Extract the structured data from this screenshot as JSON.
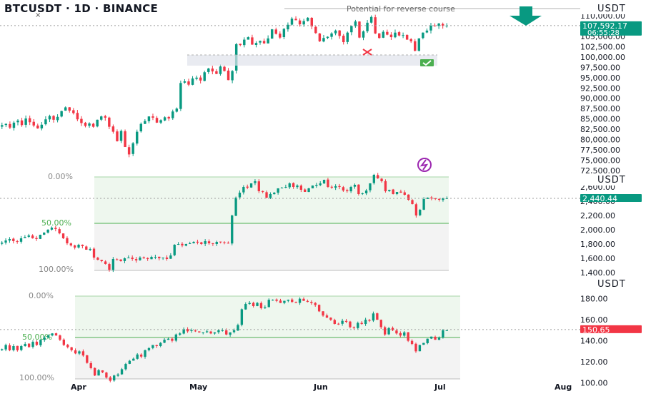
{
  "header": {
    "title": "BTCUSDT · 1D · BINANCE",
    "close_mark": "×"
  },
  "colors": {
    "up": "#089981",
    "down": "#f23645",
    "fib_fill": "#eef7ee",
    "fib_line": "#4caf50",
    "lower_fill": "#f3f3f3",
    "last_price_green": "#089981",
    "last_price_red": "#f23645",
    "arrow": "#089981"
  },
  "x_axis": {
    "months": [
      "Apr",
      "May",
      "Jun",
      "Jul",
      "Aug"
    ]
  },
  "chart_data": [
    {
      "type": "candlestick",
      "title": "BTCUSDT · 1D · BINANCE",
      "unit": "USDT",
      "ylim": [
        72500,
        110000
      ],
      "y_ticks": [
        "110,000.00",
        "107,500.00",
        "105,000.00",
        "102,500.00",
        "100,000.00",
        "97,500.00",
        "95,000.00",
        "92,500.00",
        "90,000.00",
        "87,500.00",
        "85,000.00",
        "82,500.00",
        "80,000.00",
        "77,500.00",
        "75,000.00",
        "72,500.00"
      ],
      "last_price": "107,592.17",
      "countdown": "06:55:28",
      "annotations": [
        "Potential for reverse course"
      ],
      "icons": [
        "arrow-down-icon",
        "x-mark-icon",
        "checkmark-icon",
        "lightning-badge-icon"
      ],
      "closes": [
        83500,
        83800,
        82900,
        84100,
        84600,
        83500,
        85100,
        84200,
        83400,
        82700,
        83600,
        84900,
        85700,
        84800,
        85500,
        86900,
        87800,
        87000,
        86400,
        84900,
        84000,
        83300,
        83900,
        83100,
        84800,
        85600,
        85300,
        83100,
        81900,
        79600,
        82100,
        78200,
        76400,
        79100,
        81900,
        83800,
        84500,
        85600,
        85300,
        84100,
        84700,
        85400,
        85100,
        86800,
        87500,
        93700,
        94100,
        93300,
        94800,
        95000,
        94300,
        96300,
        97200,
        96500,
        95900,
        97700,
        96600,
        94400,
        96600,
        103100,
        102900,
        104200,
        104800,
        103000,
        103400,
        103900,
        103300,
        104500,
        106700,
        105600,
        104700,
        106800,
        107800,
        109300,
        108900,
        107900,
        108700,
        109500,
        107400,
        105800,
        103800,
        104600,
        104900,
        105700,
        106400,
        105100,
        103600,
        105900,
        107500,
        108600,
        104700,
        106200,
        108300,
        109700,
        105700,
        104600,
        106100,
        105400,
        104800,
        105900,
        105200,
        105300,
        104200,
        103800,
        101500,
        104500,
        105900,
        106400,
        107600,
        107500,
        108100,
        107600,
        107592
      ]
    },
    {
      "type": "candlestick",
      "unit": "USDT",
      "ylim": [
        1300,
        2900
      ],
      "y_ticks": [
        "2,600.00",
        "2,400.00",
        "2,200.00",
        "2,000.00",
        "1,800.00",
        "1,600.00",
        "1,400.00"
      ],
      "last_price": "2,440.44",
      "fib_levels": [
        "0.00%",
        "50.00%",
        "100.00%"
      ],
      "closes": [
        1820,
        1850,
        1870,
        1840,
        1830,
        1880,
        1900,
        1920,
        1880,
        1870,
        1930,
        1960,
        2000,
        2030,
        2010,
        1950,
        1880,
        1810,
        1780,
        1750,
        1790,
        1770,
        1720,
        1730,
        1610,
        1580,
        1560,
        1520,
        1440,
        1590,
        1580,
        1560,
        1600,
        1610,
        1590,
        1570,
        1610,
        1600,
        1590,
        1620,
        1620,
        1600,
        1610,
        1590,
        1640,
        1790,
        1800,
        1780,
        1800,
        1810,
        1830,
        1820,
        1800,
        1840,
        1810,
        1800,
        1830,
        1830,
        1820,
        1810,
        2200,
        2450,
        2520,
        2600,
        2590,
        2650,
        2680,
        2540,
        2530,
        2450,
        2500,
        2520,
        2580,
        2590,
        2600,
        2650,
        2600,
        2620,
        2560,
        2530,
        2580,
        2620,
        2630,
        2650,
        2700,
        2600,
        2590,
        2610,
        2600,
        2550,
        2540,
        2600,
        2630,
        2500,
        2510,
        2550,
        2650,
        2770,
        2720,
        2680,
        2540,
        2560,
        2500,
        2530,
        2520,
        2490,
        2420,
        2360,
        2200,
        2280,
        2430,
        2450,
        2440,
        2430,
        2420,
        2440,
        2440
      ]
    },
    {
      "type": "candlestick",
      "unit": "USDT",
      "ylim": [
        97,
        192
      ],
      "y_ticks": [
        "180.00",
        "160.00",
        "140.00",
        "120.00",
        "100.00"
      ],
      "last_price": "150.65",
      "fib_levels": [
        "0.00%",
        "50.00%",
        "100.00%"
      ],
      "closes": [
        132,
        136,
        131,
        135,
        131,
        135,
        137,
        134,
        139,
        136,
        141,
        143,
        145,
        147,
        145,
        141,
        136,
        134,
        131,
        128,
        130,
        126,
        119,
        114,
        107,
        112,
        110,
        105,
        102,
        107,
        108,
        113,
        118,
        121,
        123,
        127,
        125,
        131,
        133,
        136,
        135,
        138,
        141,
        142,
        140,
        146,
        147,
        151,
        149,
        150,
        149,
        148,
        148,
        149,
        147,
        148,
        150,
        150,
        146,
        148,
        150,
        155,
        170,
        175,
        176,
        173,
        176,
        171,
        172,
        179,
        179,
        178,
        176,
        178,
        179,
        177,
        176,
        180,
        178,
        177,
        176,
        174,
        168,
        164,
        162,
        160,
        156,
        156,
        159,
        158,
        153,
        152,
        157,
        156,
        160,
        159,
        166,
        160,
        153,
        146,
        152,
        150,
        147,
        145,
        148,
        140,
        137,
        130,
        136,
        138,
        142,
        144,
        141,
        143,
        150,
        150
      ]
    }
  ]
}
